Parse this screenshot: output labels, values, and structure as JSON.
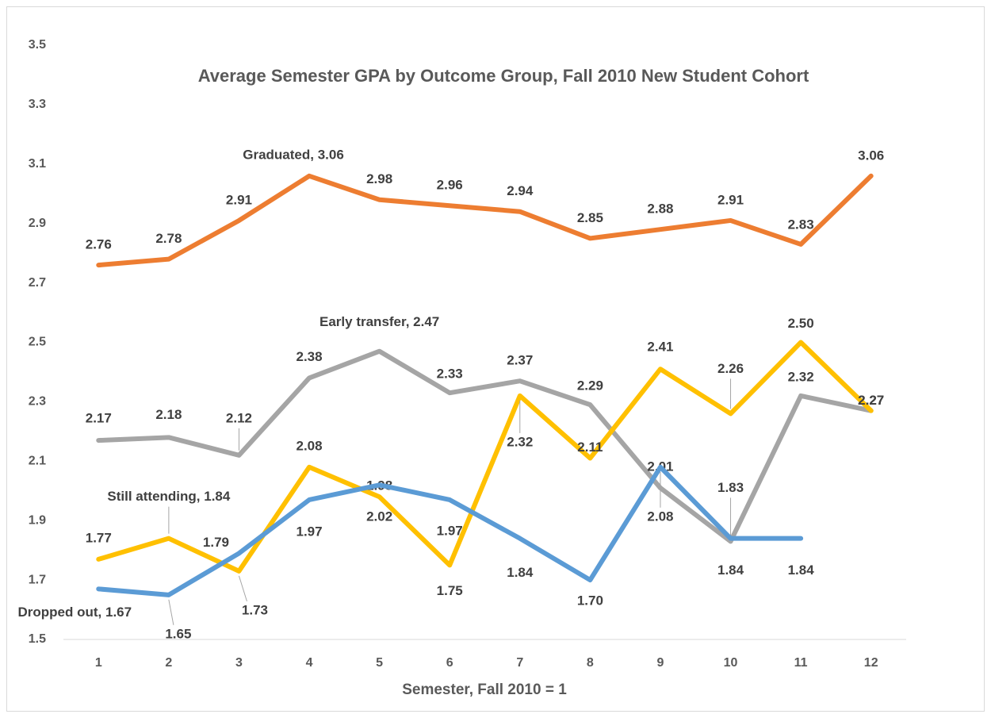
{
  "chart_data": {
    "type": "line",
    "title": "Average Semester GPA by Outcome Group, Fall 2010 New Student Cohort",
    "x_label": "Semester, Fall 2010 = 1",
    "categories": [
      "1",
      "2",
      "3",
      "4",
      "5",
      "6",
      "7",
      "8",
      "9",
      "10",
      "11",
      "12"
    ],
    "ylim": [
      1.5,
      3.5
    ],
    "yticks": [
      1.5,
      1.7,
      1.9,
      2.1,
      2.3,
      2.5,
      2.7,
      2.9,
      3.1,
      3.3,
      3.5
    ],
    "grid": false,
    "series": [
      {
        "name": "Graduated",
        "color": "#ED7D31",
        "values": [
          2.76,
          2.78,
          2.91,
          3.06,
          2.98,
          2.96,
          2.94,
          2.85,
          2.88,
          2.91,
          2.83,
          3.06
        ],
        "value_labels": [
          "2.76",
          "2.78",
          "2.91",
          "Graduated,  3.06",
          "2.98",
          "2.96",
          "2.94",
          "2.85",
          "2.88",
          "2.91",
          "2.83",
          "3.06"
        ]
      },
      {
        "name": "Early transfer",
        "color": "#A5A5A5",
        "values": [
          2.17,
          2.18,
          2.12,
          2.38,
          2.47,
          2.33,
          2.37,
          2.29,
          2.01,
          1.83,
          2.32,
          2.27
        ],
        "value_labels": [
          "2.17",
          "2.18",
          "2.12",
          "2.38",
          "Early transfer,  2.47",
          "2.33",
          "2.37",
          "2.29",
          "2.01",
          "1.83",
          "2.32",
          "2.27"
        ]
      },
      {
        "name": "Still attending",
        "color": "#FFC000",
        "values": [
          1.77,
          1.84,
          1.73,
          2.08,
          1.98,
          1.75,
          2.32,
          2.11,
          2.41,
          2.26,
          2.5,
          2.27
        ],
        "value_labels": [
          "1.77",
          "Still attending,  1.84",
          "1.73",
          "2.08",
          "1.98",
          "1.75",
          "2.32",
          "2.11",
          "2.41",
          "2.26",
          "2.50",
          "2.27"
        ]
      },
      {
        "name": "Dropped out",
        "color": "#5B9BD5",
        "values": [
          1.67,
          1.65,
          1.79,
          1.97,
          2.02,
          1.97,
          1.84,
          1.7,
          2.08,
          1.84,
          1.84,
          null
        ],
        "value_labels": [
          "Dropped out,  1.67",
          "1.65",
          "1.79",
          "1.97",
          "2.02",
          "1.97",
          "1.84",
          "1.70",
          "2.08",
          "1.84",
          "1.84",
          null
        ]
      }
    ]
  }
}
